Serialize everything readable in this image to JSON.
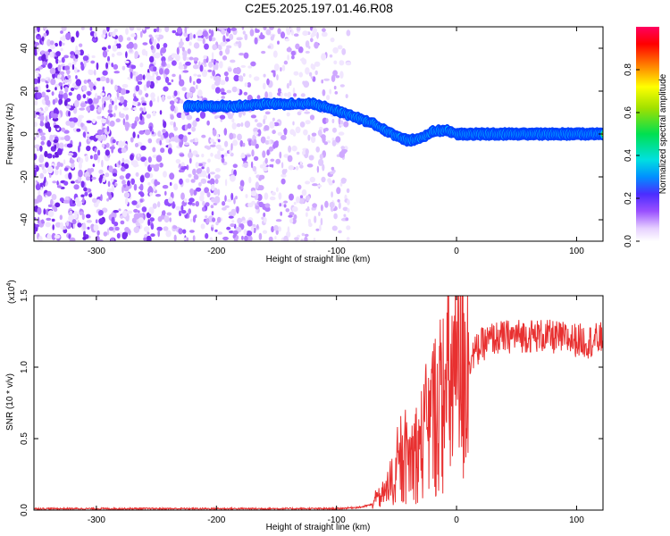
{
  "title": "C2E5.2025.197.01.46.R08",
  "colors": {
    "snr_line": "#e83030",
    "ridge_core": "#ff1010",
    "low_amp": "#7a1fe0"
  },
  "colormap": [
    "#ffffff",
    "#e6d0ff",
    "#9a50ff",
    "#4b2dff",
    "#0090ff",
    "#00e0e0",
    "#00e050",
    "#a0e000",
    "#ffff00",
    "#ff8000",
    "#ff0000",
    "#ff0060"
  ],
  "chart_data": [
    {
      "type": "heatmap",
      "title": "C2E5.2025.197.01.46.R08",
      "xlabel": "Height of straight line (km)",
      "ylabel": "Frequency (Hz)",
      "xlim": [
        -352,
        122
      ],
      "ylim": [
        -50,
        50
      ],
      "xticks": [
        -300,
        -200,
        -100,
        0,
        100
      ],
      "yticks": [
        -40,
        -20,
        0,
        20,
        40
      ],
      "colorbar_label": "Normalized spectral amplitude",
      "colorbar_ticks": [
        "0.0",
        "0.2",
        "0.4",
        "0.6",
        "0.8"
      ],
      "colorbar_range": [
        0,
        1
      ],
      "noise_region_x": [
        -352,
        -90
      ],
      "ridge": {
        "x": [
          -225,
          -200,
          -180,
          -160,
          -140,
          -120,
          -100,
          -90,
          -80,
          -70,
          -60,
          -50,
          -40,
          -30,
          -20,
          -10,
          0,
          30,
          60,
          90,
          122
        ],
        "frequency": [
          13,
          13,
          13,
          14,
          14,
          14,
          11,
          9,
          7,
          5,
          2,
          -1,
          -3,
          -2,
          1,
          2,
          0,
          0,
          0,
          0,
          0
        ]
      }
    },
    {
      "type": "line",
      "xlabel": "Height of straight line (km)",
      "ylabel": "SNR (10 * v/v)",
      "y_multiplier": "(x10^4)",
      "xlim": [
        -352,
        122
      ],
      "ylim": [
        0,
        1.5
      ],
      "xticks": [
        -300,
        -200,
        -100,
        0,
        100
      ],
      "yticks": [
        "0.0",
        "0.5",
        "1.0",
        "1.5"
      ],
      "series": [
        {
          "x": [
            -352,
            -300,
            -250,
            -200,
            -150,
            -100,
            -80,
            -70,
            -60,
            -50,
            -40,
            -30,
            -20,
            -10,
            0,
            10,
            20,
            30,
            50,
            70,
            90,
            110,
            122
          ],
          "y": [
            0.01,
            0.01,
            0.01,
            0.01,
            0.01,
            0.01,
            0.02,
            0.04,
            0.12,
            0.25,
            0.35,
            0.45,
            0.65,
            0.8,
            0.95,
            1.05,
            1.15,
            1.2,
            1.22,
            1.22,
            1.2,
            1.18,
            1.2
          ]
        }
      ]
    }
  ]
}
